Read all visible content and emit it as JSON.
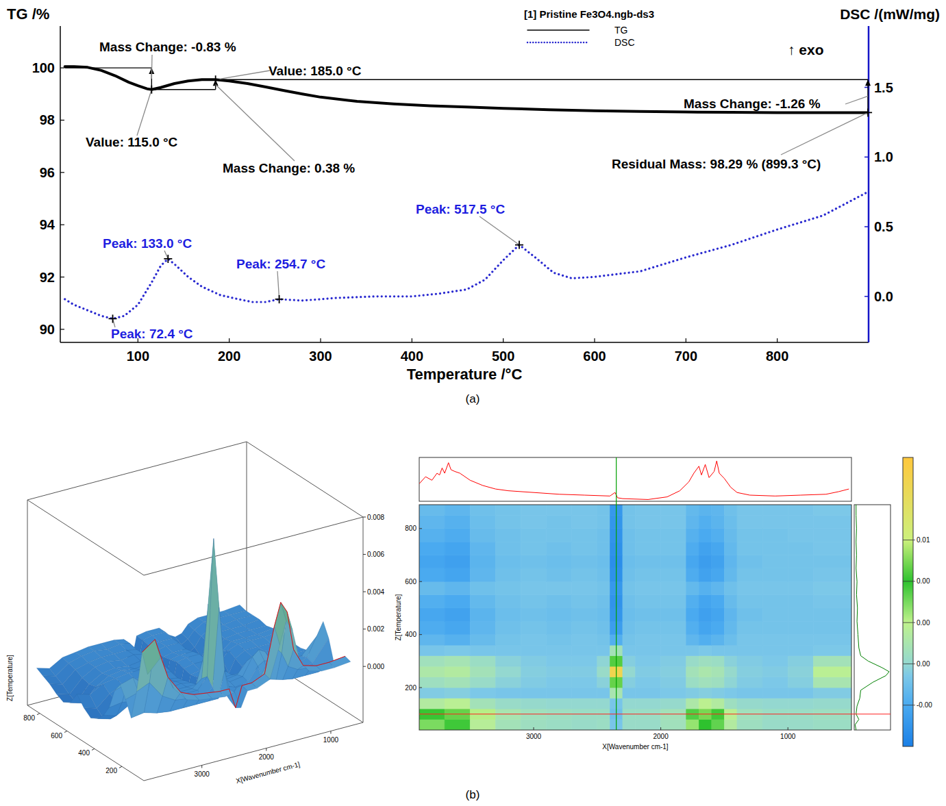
{
  "chart_data": [
    {
      "type": "line",
      "panel": "(a)",
      "legend_title": "[1] Pristine Fe3O4.ngb-ds3",
      "legend": "top",
      "x_label": "Temperature /°C",
      "y_label": "TG /%",
      "y2_label": "DSC /(mW/mg)",
      "y2_note": "↑ exo",
      "xlim": [
        15,
        900
      ],
      "xticks": [
        100,
        200,
        300,
        400,
        500,
        600,
        700,
        800
      ],
      "ylim": [
        89.5,
        101.6
      ],
      "yticks": [
        90,
        92,
        94,
        96,
        98,
        100
      ],
      "y2lim": [
        -0.33,
        1.94
      ],
      "y2ticks": [
        {
          "value": 0,
          "label": "0.0"
        },
        0.5,
        {
          "value": 1,
          "label": "1.0"
        },
        1.5
      ],
      "series": [
        {
          "name": "TG",
          "color": "#000000",
          "line_style": "solid",
          "x": [
            20,
            30,
            45,
            60,
            75,
            90,
            100,
            110,
            115,
            125,
            140,
            155,
            170,
            185,
            200,
            220,
            240,
            260,
            280,
            300,
            340,
            380,
            420,
            460,
            500,
            550,
            600,
            650,
            700,
            750,
            800,
            850,
            899.3
          ],
          "values": [
            100.05,
            100.05,
            100.02,
            99.9,
            99.7,
            99.45,
            99.32,
            99.2,
            99.17,
            99.25,
            99.4,
            99.5,
            99.55,
            99.55,
            99.5,
            99.4,
            99.27,
            99.13,
            99.0,
            98.88,
            98.72,
            98.62,
            98.55,
            98.5,
            98.45,
            98.4,
            98.36,
            98.33,
            98.31,
            98.3,
            98.29,
            98.29,
            98.29
          ]
        },
        {
          "name": "DSC",
          "color": "#2a2ad0",
          "line_style": "dotted",
          "axis": "y2",
          "x": [
            20,
            30,
            45,
            60,
            72.4,
            85,
            100,
            115,
            125,
            133,
            142,
            155,
            170,
            190,
            210,
            225,
            240,
            254.7,
            280,
            320,
            360,
            400,
            430,
            460,
            480,
            500,
            517.5,
            535,
            555,
            575,
            600,
            650,
            700,
            750,
            800,
            850,
            899.3
          ],
          "values": [
            -0.02,
            -0.06,
            -0.1,
            -0.14,
            -0.16,
            -0.14,
            -0.06,
            0.1,
            0.22,
            0.27,
            0.22,
            0.14,
            0.07,
            0.01,
            -0.02,
            -0.04,
            -0.04,
            -0.02,
            -0.03,
            -0.01,
            0,
            0,
            0.02,
            0.05,
            0.12,
            0.26,
            0.37,
            0.28,
            0.17,
            0.13,
            0.14,
            0.18,
            0.28,
            0.37,
            0.48,
            0.58,
            0.75
          ]
        }
      ],
      "mass_changes": [
        {
          "label": "Mass Change: -0.83 %",
          "value": -0.83,
          "x_start": 20,
          "x_end": 115,
          "y_start": 100
        },
        {
          "label": "Mass Change: 0.38 %",
          "value": 0.38,
          "x_start": 115,
          "x_end": 185,
          "y_start": 99.17
        },
        {
          "label": "Mass Change: -1.26 %",
          "value": -1.26,
          "x_start": 185,
          "x_end": 899.3,
          "y_start": 99.55
        }
      ],
      "value_markers": [
        {
          "label": "Value: 115.0 °C",
          "x": 115,
          "y": 99.17
        },
        {
          "label": "Value: 185.0 °C",
          "x": 185,
          "y": 99.55
        }
      ],
      "peaks": [
        {
          "label": "Peak: 133.0 °C",
          "x": 133,
          "y": 0.27
        },
        {
          "label": "Peak: 254.7 °C",
          "x": 254.7,
          "y": -0.02
        },
        {
          "label": "Peak: 517.5 °C",
          "x": 517.5,
          "y": 0.37
        },
        {
          "label": "Peak: 72.4 °C",
          "x": 72.4,
          "y": -0.16
        }
      ],
      "residual": {
        "label": "Residual Mass: 98.29 % (899.3 °C)",
        "x": 899.3,
        "y": 98.29
      }
    },
    {
      "type": "heatmap",
      "panel": "(b)",
      "x_label": "X[Wavenumber cm-1]",
      "y_label": "Z[Temperature]",
      "xlim": [
        3900,
        500
      ],
      "xticks": [
        3000,
        2000,
        1000
      ],
      "ylim": [
        40,
        890
      ],
      "yticks": [
        200,
        400,
        600,
        800
      ],
      "x_edges": [
        3900,
        3700,
        3500,
        3300,
        3100,
        2900,
        2700,
        2500,
        2400,
        2300,
        2200,
        2000,
        1800,
        1700,
        1600,
        1500,
        1400,
        1200,
        1000,
        800,
        500
      ],
      "y_edges": [
        40,
        80,
        120,
        160,
        200,
        240,
        280,
        320,
        360,
        400,
        450,
        500,
        550,
        600,
        650,
        700,
        750,
        800,
        850,
        890
      ],
      "cells": [
        [
          0.0025,
          0.0032,
          0.0014,
          0.0006,
          0.0004,
          0.0003,
          0.0002,
          0.0003,
          -0.0006,
          0.0002,
          0.0002,
          0.0005,
          0.0022,
          0.0034,
          0.0028,
          0.0012,
          0.0004,
          0.0002,
          0.0002,
          0.0003
        ],
        [
          0.0035,
          0.004,
          0.0018,
          0.0008,
          0.0005,
          0.0004,
          0.0003,
          0.0003,
          -0.0008,
          0.0003,
          0.0003,
          0.0006,
          0.003,
          0.0042,
          0.0036,
          0.0015,
          0.0005,
          0.0003,
          0.0003,
          0.0004
        ],
        [
          0.0012,
          0.0015,
          0.0006,
          0.0002,
          0.0001,
          0,
          0,
          0,
          -0.0006,
          0,
          0,
          0.0001,
          0.001,
          0.0016,
          0.0012,
          0.0004,
          0.0001,
          0,
          0,
          0.0001
        ],
        [
          -0.0004,
          -0.0003,
          -0.0005,
          -0.0006,
          -0.0006,
          -0.0006,
          -0.0006,
          -0.0006,
          0.0008,
          -0.0006,
          -0.0006,
          -0.0005,
          -0.0004,
          -0.0003,
          -0.0004,
          -0.0005,
          -0.0006,
          -0.0006,
          -0.0006,
          -0.0004
        ],
        [
          0.0004,
          0.0006,
          0.0002,
          -0.0002,
          -0.0004,
          -0.0005,
          -0.0005,
          -0.0002,
          0.004,
          -0.0003,
          -0.0005,
          -0.0004,
          0.0003,
          0.0005,
          0.0004,
          -0.0001,
          -0.0004,
          -0.0005,
          -0.0003,
          0.0008
        ],
        [
          0.001,
          0.0012,
          0.0006,
          0,
          -0.0003,
          -0.0004,
          -0.0004,
          0.0002,
          0.0075,
          0,
          -0.0004,
          -0.0003,
          0.0006,
          0.0009,
          0.0007,
          0.0001,
          -0.0003,
          -0.0004,
          -0.0002,
          0.0015
        ],
        [
          0.0005,
          0.0007,
          0.0003,
          -0.0002,
          -0.0004,
          -0.0005,
          -0.0005,
          -0.0001,
          0.0038,
          -0.0003,
          -0.0005,
          -0.0004,
          0.0002,
          0.0004,
          0.0003,
          -0.0002,
          -0.0004,
          -0.0005,
          -0.0003,
          0.0006
        ],
        [
          -0.0006,
          -0.0005,
          -0.0006,
          -0.0006,
          -0.0006,
          -0.0006,
          -0.0006,
          -0.0006,
          0.0006,
          -0.0006,
          -0.0006,
          -0.0006,
          -0.0006,
          -0.0005,
          -0.0006,
          -0.0006,
          -0.0006,
          -0.0006,
          -0.0006,
          -0.0005
        ],
        [
          -0.0012,
          -0.0014,
          -0.001,
          -0.0007,
          -0.0006,
          -0.0007,
          -0.0006,
          -0.0007,
          -0.0015,
          -0.0007,
          -0.0006,
          -0.0006,
          -0.0012,
          -0.0015,
          -0.0013,
          -0.0009,
          -0.0006,
          -0.0006,
          -0.0006,
          -0.0006
        ],
        [
          -0.0016,
          -0.0018,
          -0.0012,
          -0.0008,
          -0.0007,
          -0.0008,
          -0.0007,
          -0.0008,
          -0.0022,
          -0.0008,
          -0.0007,
          -0.0007,
          -0.0015,
          -0.0019,
          -0.0017,
          -0.0011,
          -0.0007,
          -0.0007,
          -0.0007,
          -0.0007
        ],
        [
          -0.0018,
          -0.002,
          -0.0013,
          -0.0009,
          -0.0008,
          -0.0009,
          -0.0008,
          -0.0009,
          -0.0025,
          -0.0009,
          -0.0008,
          -0.0008,
          -0.0017,
          -0.0021,
          -0.0019,
          -0.0012,
          -0.0008,
          -0.0007,
          -0.0007,
          -0.0007
        ],
        [
          -0.0015,
          -0.0017,
          -0.0011,
          -0.0008,
          -0.0007,
          -0.0008,
          -0.0007,
          -0.0008,
          -0.0026,
          -0.0008,
          -0.0007,
          -0.0007,
          -0.0015,
          -0.0019,
          -0.0017,
          -0.001,
          -0.0007,
          -0.0007,
          -0.0007,
          -0.0006
        ],
        [
          -0.001,
          -0.0012,
          -0.0008,
          -0.0007,
          -0.0006,
          -0.0006,
          -0.0006,
          -0.0007,
          -0.0024,
          -0.0007,
          -0.0006,
          -0.0006,
          -0.0011,
          -0.0014,
          -0.0012,
          -0.0008,
          -0.0006,
          -0.0006,
          -0.0006,
          -0.0005
        ],
        [
          -0.0017,
          -0.0019,
          -0.0012,
          -0.0008,
          -0.0007,
          -0.0008,
          -0.0007,
          -0.0008,
          -0.0027,
          -0.0008,
          -0.0007,
          -0.0007,
          -0.0016,
          -0.002,
          -0.0018,
          -0.0011,
          -0.0007,
          -0.0007,
          -0.0007,
          -0.0006
        ],
        [
          -0.0019,
          -0.0021,
          -0.0013,
          -0.0009,
          -0.0008,
          -0.0009,
          -0.0008,
          -0.0009,
          -0.0028,
          -0.0009,
          -0.0008,
          -0.0008,
          -0.0018,
          -0.0022,
          -0.002,
          -0.0012,
          -0.0008,
          -0.0007,
          -0.0007,
          -0.0007
        ],
        [
          -0.0017,
          -0.0019,
          -0.0012,
          -0.0008,
          -0.0007,
          -0.0008,
          -0.0007,
          -0.0008,
          -0.0027,
          -0.0008,
          -0.0007,
          -0.0007,
          -0.0016,
          -0.002,
          -0.0018,
          -0.0011,
          -0.0007,
          -0.0007,
          -0.0007,
          -0.0006
        ],
        [
          -0.0014,
          -0.0016,
          -0.001,
          -0.0008,
          -0.0007,
          -0.0007,
          -0.0007,
          -0.0008,
          -0.0026,
          -0.0008,
          -0.0007,
          -0.0007,
          -0.0014,
          -0.0017,
          -0.0015,
          -0.001,
          -0.0007,
          -0.0007,
          -0.0006,
          -0.0006
        ],
        [
          -0.0012,
          -0.0014,
          -0.0009,
          -0.0007,
          -0.0006,
          -0.0007,
          -0.0006,
          -0.0007,
          -0.0025,
          -0.0007,
          -0.0006,
          -0.0006,
          -0.0012,
          -0.0015,
          -0.0013,
          -0.0009,
          -0.0006,
          -0.0006,
          -0.0006,
          -0.0006
        ],
        [
          -0.001,
          -0.0012,
          -0.0008,
          -0.0007,
          -0.0006,
          -0.0006,
          -0.0006,
          -0.0007,
          -0.0024,
          -0.0007,
          -0.0006,
          -0.0006,
          -0.0011,
          -0.0013,
          -0.0012,
          -0.0008,
          -0.0006,
          -0.0006,
          -0.0006,
          -0.0005
        ]
      ],
      "colorbar": {
        "range": [
          -0.0034,
          0.0085
        ],
        "ticks": [
          {
            "value": 0.0051,
            "label": "0.01"
          },
          {
            "value": 0.0034,
            "label": "0.00"
          },
          {
            "value": 0.0017,
            "label": "0.00"
          },
          {
            "value": 0,
            "label": "0.00"
          },
          {
            "value": -0.0017,
            "label": "-0.00"
          }
        ]
      },
      "selected_temperature": 100,
      "selected_wavenumber": 2350,
      "spectrum": {
        "color": "#ff0000",
        "ylim": [
          -0.0002,
          0.0048
        ],
        "x": [
          3900,
          3850,
          3800,
          3760,
          3740,
          3720,
          3700,
          3670,
          3650,
          3620,
          3580,
          3500,
          3400,
          3300,
          3200,
          3000,
          2800,
          2600,
          2400,
          2360,
          2340,
          2300,
          2100,
          1950,
          1850,
          1780,
          1740,
          1700,
          1680,
          1650,
          1620,
          1580,
          1560,
          1540,
          1500,
          1450,
          1400,
          1300,
          1100,
          900,
          700,
          600,
          520
        ],
        "values": [
          0.0018,
          0.0026,
          0.0022,
          0.003,
          0.0028,
          0.0036,
          0.003,
          0.0042,
          0.0034,
          0.0032,
          0.003,
          0.0022,
          0.0016,
          0.0012,
          0.001,
          0.0008,
          0.0006,
          0.0005,
          0.0004,
          0.0008,
          0.0002,
          0.0001,
          0,
          0.0003,
          0.001,
          0.002,
          0.003,
          0.0038,
          0.0028,
          0.004,
          0.0025,
          0.0032,
          0.0044,
          0.003,
          0.0024,
          0.0014,
          0.0008,
          0.0005,
          0.0004,
          0.0005,
          0.0006,
          0.0009,
          0.0012
        ]
      },
      "profile": {
        "color": "#008000",
        "xlim": [
          0,
          0.0078
        ],
        "y": [
          40,
          60,
          80,
          100,
          130,
          160,
          190,
          220,
          245,
          260,
          275,
          300,
          320,
          350,
          400,
          450,
          500,
          550,
          600,
          650,
          700,
          750,
          800,
          850,
          890
        ],
        "values": [
          0.0004,
          0.0002,
          0.001,
          0.0004,
          0.0006,
          0.0012,
          0.0014,
          0.004,
          0.0068,
          0.0075,
          0.006,
          0.003,
          0.0014,
          0.001,
          0.0008,
          0.0006,
          0.0007,
          0.0005,
          0.0006,
          0.0004,
          0.0005,
          0.0004,
          0.0005,
          0.0004,
          0.0004
        ]
      },
      "surface": {
        "type": "surface",
        "x_label": "X[Wavenumber cm-1]",
        "y_label": "Z[Temperature]",
        "zlim": [
          -0.003,
          0.008
        ],
        "zticks": [
          {
            "value": 0,
            "label": "0.000"
          },
          0.002,
          0.004,
          0.006,
          0.008
        ],
        "xticks": [
          3000,
          2000,
          1000
        ],
        "yticks": [
          200,
          400,
          600,
          800
        ]
      }
    }
  ]
}
